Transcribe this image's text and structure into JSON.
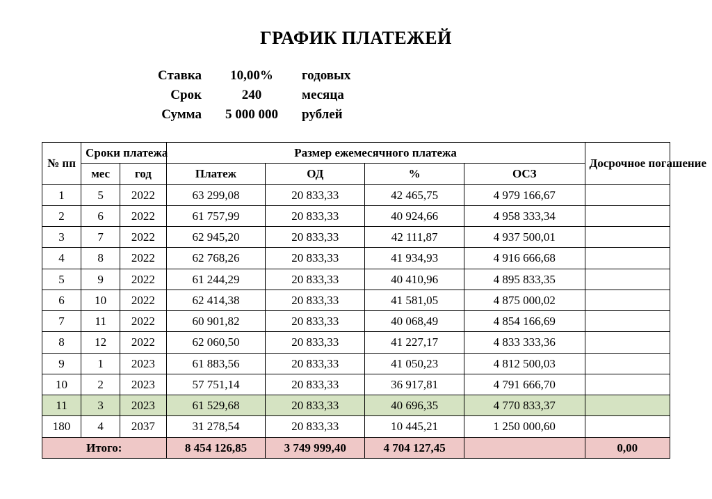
{
  "title": "ГРАФИК ПЛАТЕЖЕЙ",
  "params": {
    "rate_label": "Ставка",
    "rate_value": "10,00%",
    "rate_unit": "годовых",
    "term_label": "Срок",
    "term_value": "240",
    "term_unit": "месяца",
    "sum_label": "Сумма",
    "sum_value": "5 000 000",
    "sum_unit": "рублей"
  },
  "table": {
    "headers": {
      "npp": "№ пп",
      "sroki": "Сроки платежа",
      "mes": "мес",
      "god": "год",
      "razmer": "Размер ежемесячного платежа",
      "platezh": "Платеж",
      "od": "ОД",
      "pct": "%",
      "osz": "ОСЗ",
      "dosrochnoe": "Досрочное погашение"
    },
    "highlight_color": "#d5e3c2",
    "total_color": "#efc8c7",
    "rows": [
      {
        "n": "1",
        "mes": "5",
        "god": "2022",
        "platezh": "63 299,08",
        "od": "20 833,33",
        "pct": "42 465,75",
        "osz": "4 979 166,67",
        "dosr": ""
      },
      {
        "n": "2",
        "mes": "6",
        "god": "2022",
        "platezh": "61 757,99",
        "od": "20 833,33",
        "pct": "40 924,66",
        "osz": "4 958 333,34",
        "dosr": ""
      },
      {
        "n": "3",
        "mes": "7",
        "god": "2022",
        "platezh": "62 945,20",
        "od": "20 833,33",
        "pct": "42 111,87",
        "osz": "4 937 500,01",
        "dosr": ""
      },
      {
        "n": "4",
        "mes": "8",
        "god": "2022",
        "platezh": "62 768,26",
        "od": "20 833,33",
        "pct": "41 934,93",
        "osz": "4 916 666,68",
        "dosr": ""
      },
      {
        "n": "5",
        "mes": "9",
        "god": "2022",
        "platezh": "61 244,29",
        "od": "20 833,33",
        "pct": "40 410,96",
        "osz": "4 895 833,35",
        "dosr": ""
      },
      {
        "n": "6",
        "mes": "10",
        "god": "2022",
        "platezh": "62 414,38",
        "od": "20 833,33",
        "pct": "41 581,05",
        "osz": "4 875 000,02",
        "dosr": ""
      },
      {
        "n": "7",
        "mes": "11",
        "god": "2022",
        "platezh": "60 901,82",
        "od": "20 833,33",
        "pct": "40 068,49",
        "osz": "4 854 166,69",
        "dosr": ""
      },
      {
        "n": "8",
        "mes": "12",
        "god": "2022",
        "platezh": "62 060,50",
        "od": "20 833,33",
        "pct": "41 227,17",
        "osz": "4 833 333,36",
        "dosr": ""
      },
      {
        "n": "9",
        "mes": "1",
        "god": "2023",
        "platezh": "61 883,56",
        "od": "20 833,33",
        "pct": "41 050,23",
        "osz": "4 812 500,03",
        "dosr": ""
      },
      {
        "n": "10",
        "mes": "2",
        "god": "2023",
        "platezh": "57 751,14",
        "od": "20 833,33",
        "pct": "36 917,81",
        "osz": "4 791 666,70",
        "dosr": ""
      },
      {
        "n": "11",
        "mes": "3",
        "god": "2023",
        "platezh": "61 529,68",
        "od": "20 833,33",
        "pct": "40 696,35",
        "osz": "4 770 833,37",
        "dosr": "",
        "highlight": true
      },
      {
        "n": "180",
        "mes": "4",
        "god": "2037",
        "platezh": "31 278,54",
        "od": "20 833,33",
        "pct": "10 445,21",
        "osz": "1 250 000,60",
        "dosr": ""
      }
    ],
    "total": {
      "label": "Итого:",
      "platezh": "8 454 126,85",
      "od": "3 749 999,40",
      "pct": "4 704 127,45",
      "osz": "",
      "dosr": "0,00"
    }
  }
}
